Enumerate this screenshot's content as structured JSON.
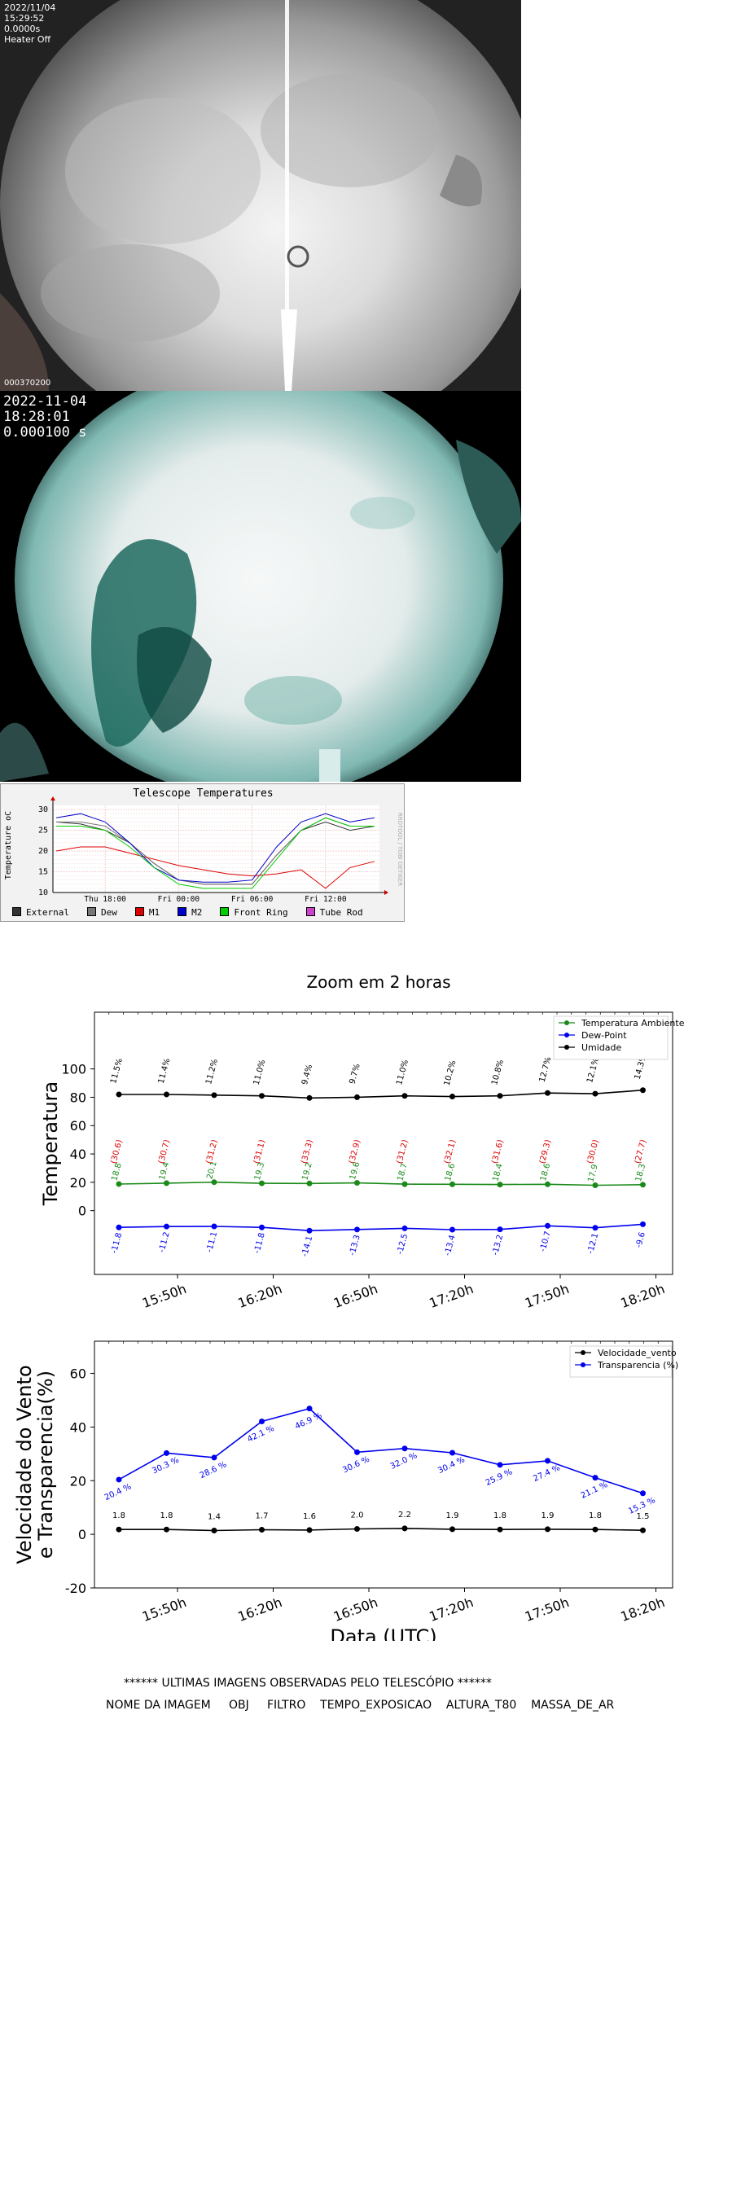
{
  "camera1": {
    "date": "2022/11/04",
    "time": "15:29:52",
    "exposure": "0.0000s",
    "heater": "Heater Off",
    "image_id": "000370200"
  },
  "camera2": {
    "date": "2022-11-04",
    "time": "18:28:01",
    "exposure": "0.000100 s"
  },
  "telescope_panel": {
    "title": "Telescope Temperatures",
    "ylabel": "Temperature oC",
    "watermark": "RRDTOOL / TOBI OETIKER",
    "legend": [
      {
        "name": "External",
        "color": "#333333"
      },
      {
        "name": "Dew",
        "color": "#777777"
      },
      {
        "name": "M1",
        "color": "#dd0000"
      },
      {
        "name": "M2",
        "color": "#0000cc"
      },
      {
        "name": "Front Ring",
        "color": "#00cc00"
      },
      {
        "name": "Tube Rod",
        "color": "#cc44cc"
      }
    ]
  },
  "zoom_title": "Zoom em 2 horas",
  "obs": {
    "heading": "****** ULTIMAS IMAGENS OBSERVADAS PELO TELESCÓPIO ******",
    "columns": "NOME DA IMAGEM     OBJ     FILTRO    TEMPO_EXPOSICAO    ALTURA_T80    MASSA_DE_AR"
  },
  "chart_data": [
    {
      "type": "line",
      "title": "Telescope Temperatures",
      "ylabel": "Temperature oC",
      "ylim": [
        10,
        31
      ],
      "yticks": [
        10,
        15,
        20,
        25,
        30
      ],
      "x_ticks": [
        "Thu 18:00",
        "Fri 00:00",
        "Fri 06:00",
        "Fri 12:00"
      ],
      "x": [
        "Thu 14:00",
        "Thu 16:00",
        "Thu 18:00",
        "Thu 20:00",
        "Thu 22:00",
        "Fri 00:00",
        "Fri 02:00",
        "Fri 04:00",
        "Fri 06:00",
        "Fri 08:00",
        "Fri 10:00",
        "Fri 12:00",
        "Fri 14:00",
        "Fri 16:00"
      ],
      "series": [
        {
          "name": "External",
          "color": "#333333",
          "values": [
            27,
            26.5,
            25,
            22,
            17,
            13,
            12,
            12,
            12,
            19,
            25,
            27,
            25,
            26
          ]
        },
        {
          "name": "Dew",
          "color": "#777777",
          "values": [
            27,
            27,
            26,
            22,
            17,
            13,
            12,
            12,
            12,
            19,
            25,
            28,
            26,
            26
          ]
        },
        {
          "name": "M1",
          "color": "#dd0000",
          "values": [
            20,
            21,
            21,
            19.5,
            18,
            16.5,
            15.5,
            14.5,
            14,
            14.5,
            15.5,
            11,
            16,
            17.5
          ]
        },
        {
          "name": "M2",
          "color": "#0000cc",
          "values": [
            28,
            29,
            27,
            22,
            16,
            13,
            12.5,
            12.5,
            13,
            21,
            27,
            29,
            27,
            28
          ]
        },
        {
          "name": "Front Ring",
          "color": "#00cc00",
          "values": [
            26,
            26,
            25,
            21,
            16,
            12,
            11,
            11,
            11,
            18,
            25,
            28,
            26,
            26
          ]
        }
      ]
    },
    {
      "type": "line",
      "title": "Zoom em 2 horas",
      "ylabel": "Temperatura",
      "ylim": [
        -45,
        140
      ],
      "yticks": [
        0,
        20,
        40,
        60,
        80,
        100
      ],
      "x_ticks": [
        "15:50h",
        "16:20h",
        "16:50h",
        "17:20h",
        "17:50h",
        "18:20h"
      ],
      "legend": "top-right",
      "series": [
        {
          "name": "Temperatura Ambiente",
          "color": "#1a8a1a",
          "values": [
            18.8,
            19.4,
            20.1,
            19.3,
            19.2,
            19.6,
            18.7,
            18.6,
            18.4,
            18.6,
            17.9,
            18.3
          ]
        },
        {
          "name": "Dew-Point",
          "color": "#0000ee",
          "values": [
            -11.8,
            -11.2,
            -11.1,
            -11.8,
            -14.1,
            -13.3,
            -12.5,
            -13.4,
            -13.2,
            -10.7,
            -12.1,
            -9.6
          ]
        },
        {
          "name": "Umidade",
          "color": "#000000",
          "values": [
            82,
            82,
            81.5,
            81,
            79.5,
            80,
            81,
            80.5,
            81,
            83,
            82.5,
            85
          ]
        }
      ],
      "annotations": {
        "top_labels": [
          "11.5%",
          "11.4%",
          "11.2%",
          "11.0%",
          "9.4%",
          "9.7%",
          "11.0%",
          "10.2%",
          "10.8%",
          "12.7%",
          "12.1%",
          "14.3%"
        ],
        "red_labels": [
          "(30.6)",
          "(30.7)",
          "(31.2)",
          "(31.1)",
          "(33.3)",
          "(32.9)",
          "(31.2)",
          "(32.1)",
          "(31.6)",
          "(29.3)",
          "(30.0)",
          "(27.7)"
        ],
        "green_labels": [
          "18.8",
          "19.4",
          "20.1",
          "19.3",
          "19.2",
          "19.6",
          "18.7",
          "18.6",
          "18.4",
          "18.6",
          "17.9",
          "18.3"
        ],
        "blue_labels": [
          "-11.8",
          "-11.2",
          "-11.1",
          "-11.8",
          "-14.1",
          "-13.3",
          "-12.5",
          "-13.4",
          "-13.2",
          "-10.7",
          "-12.1",
          "-9.6"
        ]
      }
    },
    {
      "type": "line",
      "ylabel_line1": "Velocidade do Vento",
      "ylabel_line2": "e Transparencia(%)",
      "xlabel": "Data (UTC)",
      "ylim": [
        -20,
        72
      ],
      "yticks": [
        -20,
        0,
        20,
        40,
        60
      ],
      "x_ticks": [
        "15:50h",
        "16:20h",
        "16:50h",
        "17:20h",
        "17:50h",
        "18:20h"
      ],
      "legend": "top-right",
      "series": [
        {
          "name": "Velocidade_vento",
          "color": "#000000",
          "values": [
            1.8,
            1.8,
            1.4,
            1.7,
            1.6,
            2.0,
            2.2,
            1.9,
            1.8,
            1.9,
            1.8,
            1.5
          ]
        },
        {
          "name": "Transparencia (%)",
          "color": "#0000ee",
          "values": [
            20.4,
            30.3,
            28.6,
            42.1,
            46.9,
            30.6,
            32.0,
            30.4,
            25.9,
            27.4,
            21.1,
            15.3
          ]
        }
      ],
      "annotations": {
        "wind_labels": [
          "1.8",
          "1.8",
          "1.4",
          "1.7",
          "1.6",
          "2.0",
          "2.2",
          "1.9",
          "1.8",
          "1.9",
          "1.8",
          "1.5"
        ],
        "transp_labels": [
          "20.4 %",
          "30.3 %",
          "28.6 %",
          "42.1 %",
          "46.9 %",
          "30.6 %",
          "32.0 %",
          "30.4 %",
          "25.9 %",
          "27.4 %",
          "21.1 %",
          "15.3 %"
        ]
      }
    }
  ]
}
